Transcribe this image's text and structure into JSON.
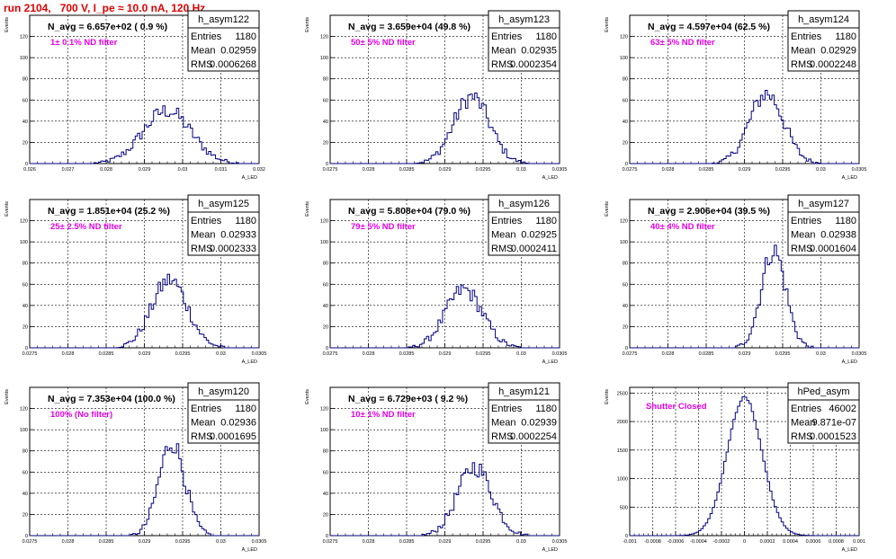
{
  "page_title": "run 2104,   700 V, I_pe ≈ 10.0 nA, 120 Hz",
  "stats_labels": {
    "entries": "Entries",
    "mean": "Mean",
    "rms": "RMS"
  },
  "colors": {
    "histogram": "#000080",
    "title": "#e00000",
    "filter_text": "#e600e6",
    "grid": "#000000"
  },
  "chart_data": [
    {
      "type": "bar",
      "name": "h_asym122",
      "navg": "N_avg = 6.657e+02 ( 0.9 %)",
      "filter": "1± 0.1% ND filter",
      "entries": "1180",
      "mean": "0.02959",
      "rms": "0.0006268",
      "xlabel": "A_LED",
      "ylabel": "Events",
      "xlim": [
        0.026,
        0.032
      ],
      "ylim": [
        0,
        140
      ],
      "xticks": [
        "0.026",
        "0.027",
        "0.028",
        "0.029",
        "0.03",
        "0.031",
        "0.032"
      ],
      "yticks": [
        "0",
        "20",
        "40",
        "60",
        "80",
        "100",
        "120"
      ],
      "mu": 0.02959,
      "sigma": 0.0006268,
      "peak": 50,
      "nbins": 100
    },
    {
      "type": "bar",
      "name": "h_asym123",
      "navg": "N_avg = 3.659e+04 (49.8 %)",
      "filter": "50± 5% ND filter",
      "entries": "1180",
      "mean": "0.02935",
      "rms": "0.0002354",
      "xlabel": "A_LED",
      "ylabel": "Events",
      "xlim": [
        0.0275,
        0.0305
      ],
      "ylim": [
        0,
        140
      ],
      "xticks": [
        "0.0275",
        "0.028",
        "0.0285",
        "0.029",
        "0.0295",
        "0.03",
        "0.0305"
      ],
      "yticks": [
        "0",
        "20",
        "40",
        "60",
        "80",
        "100",
        "120"
      ],
      "mu": 0.02935,
      "sigma": 0.0002354,
      "peak": 63,
      "nbins": 100
    },
    {
      "type": "bar",
      "name": "h_asym124",
      "navg": "N_avg = 4.597e+04 (62.5 %)",
      "filter": "63± 5% ND filter",
      "entries": "1180",
      "mean": "0.02929",
      "rms": "0.0002248",
      "xlabel": "A_LED",
      "ylabel": "Events",
      "xlim": [
        0.0275,
        0.0305
      ],
      "ylim": [
        0,
        140
      ],
      "xticks": [
        "0.0275",
        "0.028",
        "0.0285",
        "0.029",
        "0.0295",
        "0.03",
        "0.0305"
      ],
      "yticks": [
        "0",
        "20",
        "40",
        "60",
        "80",
        "100",
        "120"
      ],
      "mu": 0.02929,
      "sigma": 0.0002248,
      "peak": 66,
      "nbins": 100
    },
    {
      "type": "bar",
      "name": "h_asym125",
      "navg": "N_avg = 1.851e+04 (25.2 %)",
      "filter": "25± 2.5% ND filter",
      "entries": "1180",
      "mean": "0.02933",
      "rms": "0.0002333",
      "xlabel": "A_LED",
      "ylabel": "Events",
      "xlim": [
        0.0275,
        0.0305
      ],
      "ylim": [
        0,
        140
      ],
      "xticks": [
        "0.0275",
        "0.028",
        "0.0285",
        "0.029",
        "0.0295",
        "0.03",
        "0.0305"
      ],
      "yticks": [
        "0",
        "20",
        "40",
        "60",
        "80",
        "100",
        "120"
      ],
      "mu": 0.02933,
      "sigma": 0.0002333,
      "peak": 64,
      "nbins": 100
    },
    {
      "type": "bar",
      "name": "h_asym126",
      "navg": "N_avg = 5.808e+04 (79.0 %)",
      "filter": "79± 5% ND filter",
      "entries": "1180",
      "mean": "0.02925",
      "rms": "0.0002411",
      "xlabel": "A_LED",
      "ylabel": "Events",
      "xlim": [
        0.0275,
        0.0305
      ],
      "ylim": [
        0,
        140
      ],
      "xticks": [
        "0.0275",
        "0.028",
        "0.0285",
        "0.029",
        "0.0295",
        "0.03",
        "0.0305"
      ],
      "yticks": [
        "0",
        "20",
        "40",
        "60",
        "80",
        "100",
        "120"
      ],
      "mu": 0.02925,
      "sigma": 0.0002411,
      "peak": 55,
      "nbins": 100
    },
    {
      "type": "bar",
      "name": "h_asym127",
      "navg": "N_avg = 2.906e+04 (39.5 %)",
      "filter": "40± 4% ND filter",
      "entries": "1180",
      "mean": "0.02938",
      "rms": "0.0001604",
      "xlabel": "A_LED",
      "ylabel": "Events",
      "xlim": [
        0.0275,
        0.0305
      ],
      "ylim": [
        0,
        140
      ],
      "xticks": [
        "0.0275",
        "0.028",
        "0.0285",
        "0.029",
        "0.0295",
        "0.03",
        "0.0305"
      ],
      "yticks": [
        "0",
        "20",
        "40",
        "60",
        "80",
        "100",
        "120"
      ],
      "mu": 0.02938,
      "sigma": 0.0001604,
      "peak": 92,
      "nbins": 100
    },
    {
      "type": "bar",
      "name": "h_asym120",
      "navg": "N_avg = 7.353e+04 (100.0 %)",
      "filter": "100% (No filter)",
      "entries": "1180",
      "mean": "0.02936",
      "rms": "0.0001695",
      "xlabel": "A_LED",
      "ylabel": "Events",
      "xlim": [
        0.0275,
        0.0305
      ],
      "ylim": [
        0,
        140
      ],
      "xticks": [
        "0.0275",
        "0.028",
        "0.0285",
        "0.029",
        "0.0295",
        "0.03",
        "0.0305"
      ],
      "yticks": [
        "0",
        "20",
        "40",
        "60",
        "80",
        "100",
        "120"
      ],
      "mu": 0.02936,
      "sigma": 0.0001695,
      "peak": 88,
      "nbins": 100
    },
    {
      "type": "bar",
      "name": "h_asym121",
      "navg": "N_avg = 6.729e+03 ( 9.2 %)",
      "filter": "10± 1% ND filter",
      "entries": "1180",
      "mean": "0.02939",
      "rms": "0.0002254",
      "xlabel": "A_LED",
      "ylabel": "Events",
      "xlim": [
        0.0275,
        0.0305
      ],
      "ylim": [
        0,
        140
      ],
      "xticks": [
        "0.0275",
        "0.028",
        "0.0285",
        "0.029",
        "0.0295",
        "0.03",
        "0.0305"
      ],
      "yticks": [
        "0",
        "20",
        "40",
        "60",
        "80",
        "100",
        "120"
      ],
      "mu": 0.02939,
      "sigma": 0.0002254,
      "peak": 65,
      "nbins": 100
    },
    {
      "type": "bar",
      "name": "hPed_asym",
      "navg": "",
      "filter": "Shutter Closed",
      "entries": "46002",
      "mean": "9.871e-07",
      "rms": "0.0001523",
      "xlabel": "A_LED",
      "ylabel": "Events",
      "xlim": [
        -0.001,
        0.001
      ],
      "ylim": [
        0,
        2600
      ],
      "xticks": [
        "-0.001",
        "-0.0008",
        "-0.0006",
        "-0.0004",
        "-0.0002",
        "0",
        "0.0002",
        "0.0004",
        "0.0006",
        "0.0008",
        "0.001"
      ],
      "yticks": [
        "0",
        "500",
        "1000",
        "1500",
        "2000",
        "2500"
      ],
      "mu": 9.871e-07,
      "sigma": 0.0001523,
      "peak": 2420,
      "nbins": 100
    }
  ]
}
